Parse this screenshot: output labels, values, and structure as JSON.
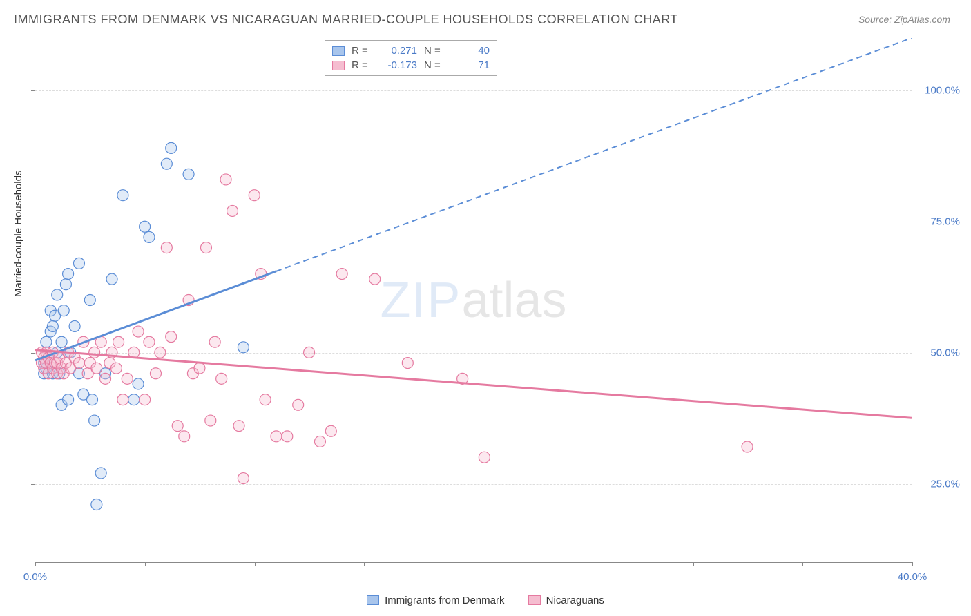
{
  "title": "IMMIGRANTS FROM DENMARK VS NICARAGUAN MARRIED-COUPLE HOUSEHOLDS CORRELATION CHART",
  "source": "Source: ZipAtlas.com",
  "ylabel": "Married-couple Households",
  "watermark_part1": "ZIP",
  "watermark_part2": "atlas",
  "chart": {
    "type": "scatter",
    "background_color": "#ffffff",
    "grid_color": "#dddddd",
    "axis_color": "#888888",
    "tick_label_color": "#4a7ac7",
    "axis_label_color": "#333333",
    "label_fontsize": 15,
    "title_fontsize": 18,
    "title_color": "#555555",
    "xlim": [
      0.0,
      40.0
    ],
    "ylim": [
      10.0,
      110.0
    ],
    "x_ticks": [
      0.0,
      5.0,
      10.0,
      15.0,
      20.0,
      25.0,
      30.0,
      35.0,
      40.0
    ],
    "x_tick_labels_visible": {
      "0.0": "0.0%",
      "40.0": "40.0%"
    },
    "y_ticks": [
      25.0,
      50.0,
      75.0,
      100.0
    ],
    "y_tick_labels": {
      "25.0": "25.0%",
      "50.0": "50.0%",
      "75.0": "75.0%",
      "100.0": "100.0%"
    },
    "marker_radius": 8,
    "marker_fill_opacity": 0.35,
    "marker_stroke_width": 1.2,
    "series": [
      {
        "name": "Immigrants from Denmark",
        "color_stroke": "#5b8dd6",
        "color_fill": "#a8c5ec",
        "r": 0.271,
        "n": 40,
        "trend": {
          "x1": 0.0,
          "y1": 48.5,
          "x2": 11.0,
          "y2": 65.5,
          "extrap_x2": 40.0,
          "extrap_y2": 110.0,
          "line_width_solid": 3,
          "line_width_dash": 2,
          "dash": "8,6"
        },
        "points": [
          [
            0.4,
            48
          ],
          [
            0.4,
            46
          ],
          [
            0.5,
            47
          ],
          [
            0.5,
            52
          ],
          [
            0.6,
            49
          ],
          [
            0.7,
            54
          ],
          [
            0.7,
            58
          ],
          [
            0.8,
            55
          ],
          [
            0.8,
            46
          ],
          [
            0.9,
            57
          ],
          [
            1.0,
            50
          ],
          [
            1.0,
            61
          ],
          [
            1.1,
            46
          ],
          [
            1.2,
            40
          ],
          [
            1.2,
            52
          ],
          [
            1.3,
            58
          ],
          [
            1.4,
            63
          ],
          [
            1.5,
            65
          ],
          [
            1.5,
            41
          ],
          [
            1.6,
            50
          ],
          [
            1.8,
            55
          ],
          [
            2.0,
            67
          ],
          [
            2.0,
            46
          ],
          [
            2.2,
            42
          ],
          [
            2.5,
            60
          ],
          [
            2.6,
            41
          ],
          [
            2.7,
            37
          ],
          [
            2.8,
            21
          ],
          [
            3.0,
            27
          ],
          [
            3.2,
            46
          ],
          [
            3.5,
            64
          ],
          [
            4.0,
            80
          ],
          [
            4.5,
            41
          ],
          [
            4.7,
            44
          ],
          [
            5.0,
            74
          ],
          [
            5.2,
            72
          ],
          [
            6.0,
            86
          ],
          [
            6.2,
            89
          ],
          [
            7.0,
            84
          ],
          [
            9.5,
            51
          ]
        ]
      },
      {
        "name": "Nicaraguans",
        "color_stroke": "#e57aa0",
        "color_fill": "#f5bdd0",
        "r": -0.173,
        "n": 71,
        "trend": {
          "x1": 0.0,
          "y1": 50.5,
          "x2": 40.0,
          "y2": 37.5,
          "line_width_solid": 3
        },
        "points": [
          [
            0.3,
            48
          ],
          [
            0.3,
            50
          ],
          [
            0.4,
            47
          ],
          [
            0.4,
            49
          ],
          [
            0.5,
            48
          ],
          [
            0.5,
            50
          ],
          [
            0.6,
            46
          ],
          [
            0.6,
            49
          ],
          [
            0.7,
            48
          ],
          [
            0.8,
            47
          ],
          [
            0.8,
            50
          ],
          [
            0.9,
            48
          ],
          [
            1.0,
            46
          ],
          [
            1.0,
            48
          ],
          [
            1.1,
            49
          ],
          [
            1.2,
            47
          ],
          [
            1.3,
            46
          ],
          [
            1.4,
            48
          ],
          [
            1.5,
            50
          ],
          [
            1.6,
            47
          ],
          [
            1.8,
            49
          ],
          [
            2.0,
            48
          ],
          [
            2.2,
            52
          ],
          [
            2.4,
            46
          ],
          [
            2.5,
            48
          ],
          [
            2.7,
            50
          ],
          [
            2.8,
            47
          ],
          [
            3.0,
            52
          ],
          [
            3.2,
            45
          ],
          [
            3.4,
            48
          ],
          [
            3.5,
            50
          ],
          [
            3.7,
            47
          ],
          [
            3.8,
            52
          ],
          [
            4.0,
            41
          ],
          [
            4.2,
            45
          ],
          [
            4.5,
            50
          ],
          [
            4.7,
            54
          ],
          [
            5.0,
            41
          ],
          [
            5.2,
            52
          ],
          [
            5.5,
            46
          ],
          [
            5.7,
            50
          ],
          [
            6.0,
            70
          ],
          [
            6.2,
            53
          ],
          [
            6.5,
            36
          ],
          [
            6.8,
            34
          ],
          [
            7.0,
            60
          ],
          [
            7.2,
            46
          ],
          [
            7.5,
            47
          ],
          [
            7.8,
            70
          ],
          [
            8.0,
            37
          ],
          [
            8.2,
            52
          ],
          [
            8.5,
            45
          ],
          [
            8.7,
            83
          ],
          [
            9.0,
            77
          ],
          [
            9.3,
            36
          ],
          [
            9.5,
            26
          ],
          [
            10.0,
            80
          ],
          [
            10.3,
            65
          ],
          [
            10.5,
            41
          ],
          [
            11.0,
            34
          ],
          [
            11.5,
            34
          ],
          [
            12.0,
            40
          ],
          [
            12.5,
            50
          ],
          [
            13.0,
            33
          ],
          [
            13.5,
            35
          ],
          [
            14.0,
            65
          ],
          [
            15.5,
            64
          ],
          [
            17.0,
            48
          ],
          [
            19.5,
            45
          ],
          [
            20.5,
            30
          ],
          [
            32.5,
            32
          ]
        ]
      }
    ]
  },
  "legend_top": {
    "r_label": "R =",
    "n_label": "N ="
  },
  "source_color": "#888888",
  "source_fontsize": 14
}
